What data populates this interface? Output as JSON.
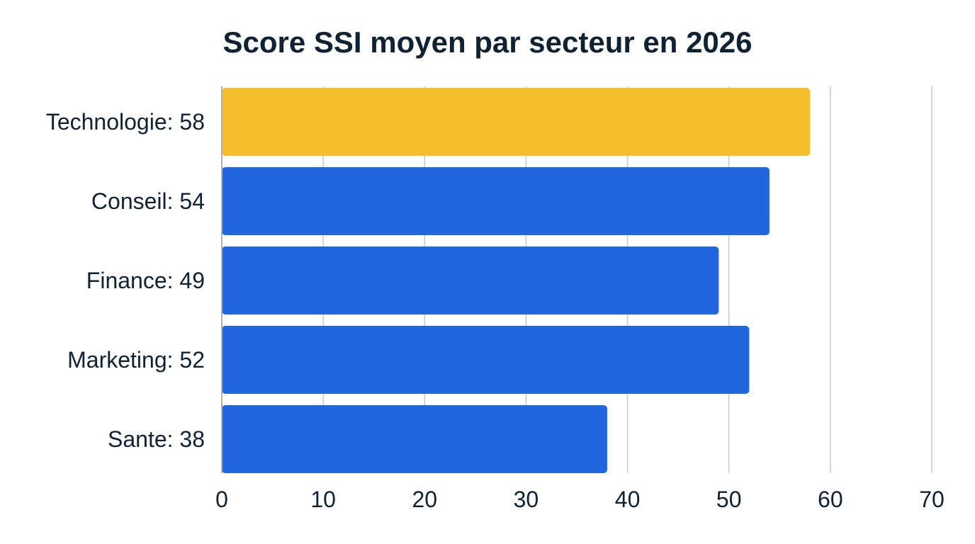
{
  "chart_data": {
    "type": "bar",
    "orientation": "horizontal",
    "title": "Score SSI moyen par secteur en 2026",
    "categories": [
      "Technologie: 58",
      "Conseil: 54",
      "Finance: 49",
      "Marketing: 52",
      "Sante: 38"
    ],
    "values": [
      58,
      54,
      49,
      52,
      38
    ],
    "colors": [
      "#F5BE2E",
      "#2166DE",
      "#2166DE",
      "#2166DE",
      "#2166DE"
    ],
    "xlim": [
      0,
      70
    ],
    "xticks": [
      "0",
      "10",
      "20",
      "30",
      "40",
      "50",
      "60",
      "70"
    ],
    "xlabel": "",
    "ylabel": "",
    "grid": "vertical",
    "legend": "none"
  }
}
